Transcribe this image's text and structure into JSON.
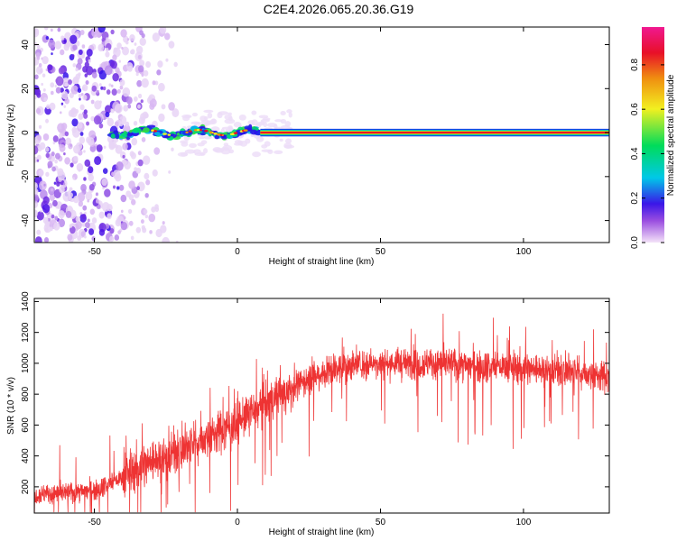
{
  "title": "C2E4.2026.065.20.36.G19",
  "chart_data": [
    {
      "type": "heatmap",
      "xlabel": "Height of straight line (km)",
      "ylabel": "Frequency (Hz)",
      "xlim": [
        -71,
        130
      ],
      "ylim": [
        -50,
        48
      ],
      "x_ticks": [
        -50,
        0,
        50,
        100
      ],
      "y_ticks": [
        -40,
        -20,
        0,
        20,
        40
      ],
      "colorbar": {
        "label": "Normalized spectral amplitude",
        "range": [
          0,
          0.97
        ],
        "ticks": [
          0.0,
          0.2,
          0.4,
          0.6,
          0.8
        ],
        "colormap": [
          "#f4e3f8",
          "#9b4fe0",
          "#3a16e8",
          "#00c8e8",
          "#00dc5a",
          "#f2f020",
          "#f09010",
          "#e81028",
          "#f01890"
        ]
      },
      "features": {
        "scattered_noise_region_km": [
          -71,
          -45
        ],
        "noise_fade_region_km": [
          -45,
          -25
        ],
        "signal_start_km": -44,
        "signal_line_frequency_hz": 0,
        "signal_wobble_region_km": [
          -44,
          8
        ],
        "steady_line_region_km": [
          8,
          130
        ]
      }
    },
    {
      "type": "line",
      "xlabel": "Height of straight line (km)",
      "ylabel": "SNR (10 * v/v)",
      "xlim": [
        -71,
        130
      ],
      "ylim": [
        30,
        1420
      ],
      "x_ticks": [
        -50,
        0,
        50,
        100
      ],
      "y_ticks": [
        200,
        400,
        600,
        800,
        1000,
        1200,
        1400
      ],
      "color": "#ee3333",
      "trend": {
        "x": [
          -71,
          -60,
          -50,
          -40,
          -35,
          -30,
          -25,
          -20,
          -15,
          -10,
          -5,
          0,
          5,
          10,
          15,
          20,
          25,
          30,
          35,
          40,
          50,
          60,
          70,
          80,
          90,
          100,
          110,
          120,
          130
        ],
        "y": [
          150,
          160,
          180,
          260,
          320,
          370,
          400,
          440,
          480,
          530,
          570,
          620,
          680,
          740,
          800,
          850,
          900,
          940,
          970,
          990,
          1000,
          1000,
          1000,
          990,
          980,
          970,
          960,
          940,
          910
        ]
      }
    }
  ]
}
